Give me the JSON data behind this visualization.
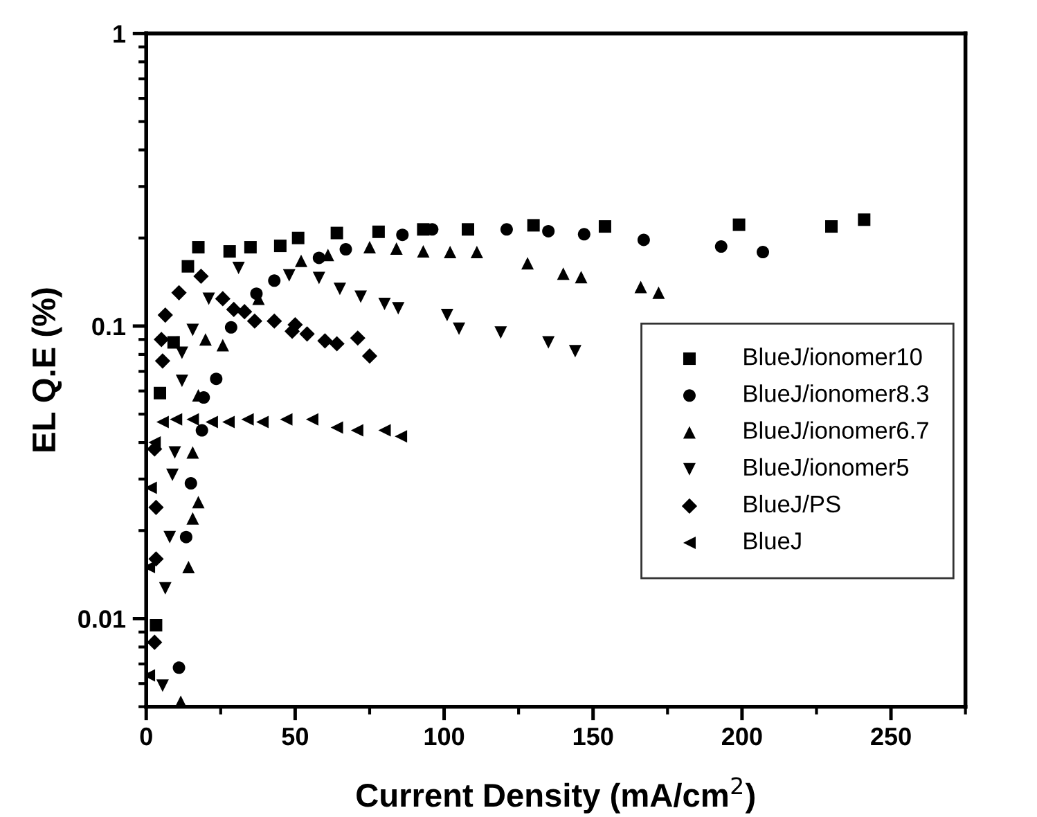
{
  "chart_data": {
    "type": "scatter",
    "xlabel": "Current Density (mA/cm$^{2}$)",
    "ylabel": "EL Q.E (%)",
    "log": "y",
    "xlim": [
      0,
      275
    ],
    "xticks": [
      0,
      50,
      100,
      150,
      200,
      250
    ],
    "ylim": [
      0.005,
      1
    ],
    "yticks": [
      0.01,
      0.1,
      1
    ],
    "grid": false,
    "legend": "center right",
    "series": [
      {
        "name": "BlueJ/ionomer10",
        "color": "#000000",
        "marker": "square",
        "x": [
          3.3,
          4.6,
          9.2,
          14,
          17.5,
          28,
          35,
          45,
          51,
          64,
          78,
          93,
          108,
          130,
          154,
          199,
          230,
          241
        ],
        "values": [
          0.0095,
          0.059,
          0.088,
          0.16,
          0.186,
          0.18,
          0.186,
          0.188,
          0.2,
          0.208,
          0.21,
          0.214,
          0.214,
          0.221,
          0.219,
          0.222,
          0.219,
          0.231
        ]
      },
      {
        "name": "BlueJ/ionomer8.3",
        "color": "#000000",
        "marker": "circle",
        "x": [
          11,
          13.4,
          15,
          18.7,
          19.3,
          23.5,
          25,
          28.5,
          37,
          43,
          58,
          67,
          86,
          96,
          121,
          135,
          147,
          167,
          193,
          207
        ],
        "values": [
          0.0068,
          0.019,
          0.029,
          0.044,
          0.057,
          0.066,
          null,
          0.099,
          0.129,
          0.143,
          0.171,
          0.183,
          0.205,
          0.214,
          0.214,
          0.211,
          0.206,
          0.197,
          0.187,
          0.179
        ]
      },
      {
        "name": "BlueJ/ionomer6.7",
        "color": "#000000",
        "marker": "triangle",
        "x": [
          11.6,
          14.2,
          15.6,
          17.5,
          15.6,
          17.5,
          19.9,
          25.7,
          37.7,
          52,
          61,
          75,
          84,
          93,
          102,
          111,
          128,
          140,
          146,
          166,
          172
        ],
        "values": [
          0.0052,
          0.015,
          0.022,
          0.025,
          0.037,
          0.058,
          0.09,
          0.086,
          0.124,
          0.167,
          0.175,
          0.186,
          0.184,
          0.18,
          0.179,
          0.179,
          0.164,
          0.151,
          0.147,
          0.136,
          0.13
        ]
      },
      {
        "name": "BlueJ/ionomer5",
        "color": "#000000",
        "marker": "triangle_down",
        "x": [
          5.5,
          6.4,
          7.9,
          8.8,
          9.6,
          12,
          12,
          15.6,
          21,
          31,
          48,
          58,
          65,
          72,
          80,
          84.6,
          101,
          105,
          119,
          135,
          144
        ],
        "values": [
          0.0059,
          0.0127,
          0.019,
          0.031,
          0.037,
          0.065,
          0.081,
          0.097,
          0.124,
          0.158,
          0.149,
          0.146,
          0.134,
          0.126,
          0.119,
          0.115,
          0.109,
          0.098,
          0.095,
          0.088,
          0.082
        ]
      },
      {
        "name": "BlueJ/PS",
        "color": "#000000",
        "marker": "diamond",
        "x": [
          2.8,
          3.3,
          3.3,
          2.8,
          5.5,
          5.1,
          6.4,
          11,
          18.4,
          25.7,
          29.4,
          33,
          36.4,
          43,
          50,
          49,
          54,
          60,
          64,
          71,
          75
        ],
        "values": [
          0.0083,
          0.016,
          0.024,
          0.038,
          0.076,
          0.09,
          0.109,
          0.13,
          0.148,
          0.124,
          0.114,
          0.112,
          0.104,
          0.104,
          0.101,
          0.096,
          0.094,
          0.089,
          0.087,
          0.091,
          0.079
        ]
      },
      {
        "name": "BlueJ",
        "color": "#000000",
        "marker": "triangle_left",
        "x": [
          0.9,
          0.9,
          1.5,
          2.8,
          5.5,
          10,
          15.6,
          22,
          27.6,
          34,
          39,
          47,
          55.7,
          64,
          70.8,
          80,
          85.5
        ],
        "values": [
          0.0064,
          0.015,
          0.028,
          0.04,
          0.047,
          0.048,
          0.048,
          0.047,
          0.047,
          0.048,
          0.047,
          0.048,
          0.048,
          0.045,
          0.044,
          0.044,
          0.042
        ]
      }
    ]
  }
}
